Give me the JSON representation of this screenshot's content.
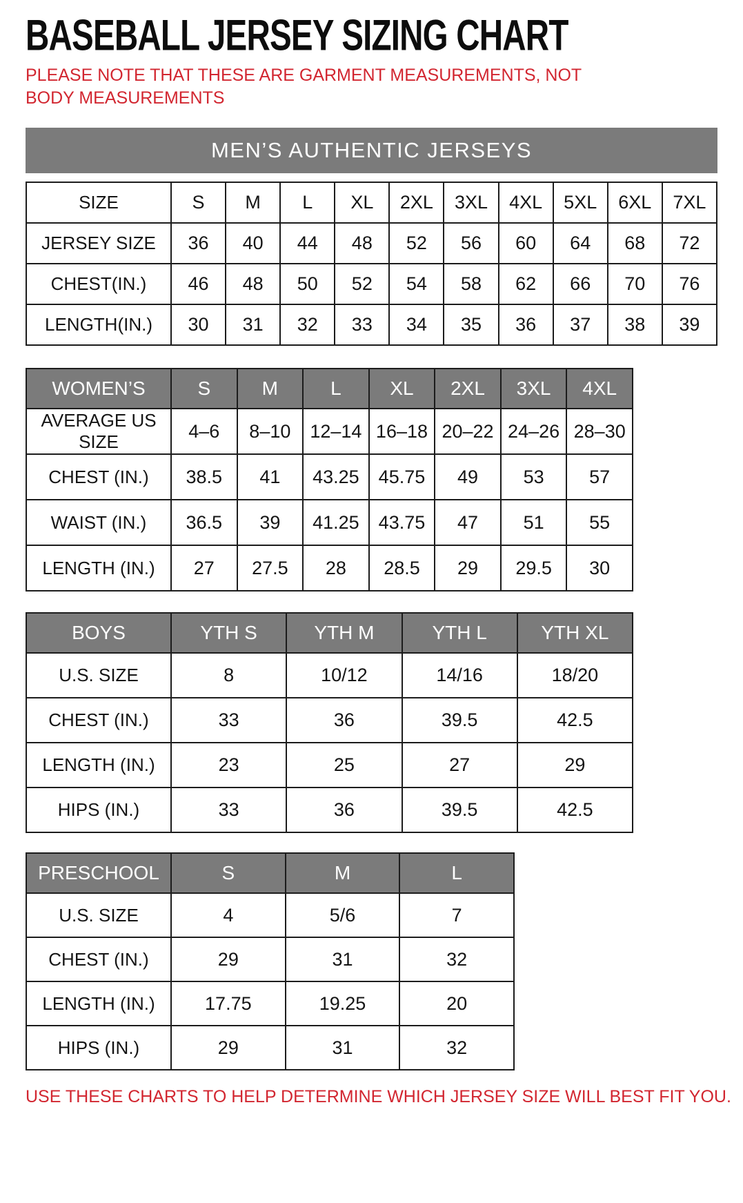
{
  "page": {
    "title": "BASEBALL JERSEY SIZING CHART",
    "note": "PLEASE NOTE THAT THESE ARE GARMENT MEASUREMENTS, NOT BODY MEASUREMENTS",
    "footer": "USE THESE CHARTS TO HELP DETERMINE WHICH JERSEY SIZE WILL BEST FIT YOU.",
    "colors": {
      "accent_red": "#d22630",
      "header_gray": "#7b7b7b",
      "border_black": "#1c1c1c"
    }
  },
  "tables": {
    "mens": {
      "banner": "MEN’S AUTHENTIC JERSEYS",
      "rows": [
        {
          "label": "SIZE",
          "values": [
            "S",
            "M",
            "L",
            "XL",
            "2XL",
            "3XL",
            "4XL",
            "5XL",
            "6XL",
            "7XL"
          ]
        },
        {
          "label": "JERSEY SIZE",
          "values": [
            "36",
            "40",
            "44",
            "48",
            "52",
            "56",
            "60",
            "64",
            "68",
            "72"
          ]
        },
        {
          "label": "CHEST(IN.)",
          "values": [
            "46",
            "48",
            "50",
            "52",
            "54",
            "58",
            "62",
            "66",
            "70",
            "76"
          ]
        },
        {
          "label": "LENGTH(IN.)",
          "values": [
            "30",
            "31",
            "32",
            "33",
            "34",
            "35",
            "36",
            "37",
            "38",
            "39"
          ]
        }
      ]
    },
    "womens": {
      "header": {
        "label": "WOMEN’S",
        "sizes": [
          "S",
          "M",
          "L",
          "XL",
          "2XL",
          "3XL",
          "4XL"
        ]
      },
      "rows": [
        {
          "label": "AVERAGE US SIZE",
          "values": [
            "4–6",
            "8–10",
            "12–14",
            "16–18",
            "20–22",
            "24–26",
            "28–30"
          ]
        },
        {
          "label": "CHEST (IN.)",
          "values": [
            "38.5",
            "41",
            "43.25",
            "45.75",
            "49",
            "53",
            "57"
          ]
        },
        {
          "label": "WAIST (IN.)",
          "values": [
            "36.5",
            "39",
            "41.25",
            "43.75",
            "47",
            "51",
            "55"
          ]
        },
        {
          "label": "LENGTH (IN.)",
          "values": [
            "27",
            "27.5",
            "28",
            "28.5",
            "29",
            "29.5",
            "30"
          ]
        }
      ]
    },
    "boys": {
      "header": {
        "label": "BOYS",
        "sizes": [
          "YTH S",
          "YTH M",
          "YTH L",
          "YTH XL"
        ]
      },
      "rows": [
        {
          "label": "U.S. SIZE",
          "values": [
            "8",
            "10/12",
            "14/16",
            "18/20"
          ]
        },
        {
          "label": "CHEST (IN.)",
          "values": [
            "33",
            "36",
            "39.5",
            "42.5"
          ]
        },
        {
          "label": "LENGTH (IN.)",
          "values": [
            "23",
            "25",
            "27",
            "29"
          ]
        },
        {
          "label": "HIPS (IN.)",
          "values": [
            "33",
            "36",
            "39.5",
            "42.5"
          ]
        }
      ]
    },
    "preschool": {
      "header": {
        "label": "PRESCHOOL",
        "sizes": [
          "S",
          "M",
          "L"
        ]
      },
      "rows": [
        {
          "label": "U.S. SIZE",
          "values": [
            "4",
            "5/6",
            "7"
          ]
        },
        {
          "label": "CHEST (IN.)",
          "values": [
            "29",
            "31",
            "32"
          ]
        },
        {
          "label": "LENGTH (IN.)",
          "values": [
            "17.75",
            "19.25",
            "20"
          ]
        },
        {
          "label": "HIPS (IN.)",
          "values": [
            "29",
            "31",
            "32"
          ]
        }
      ]
    }
  }
}
